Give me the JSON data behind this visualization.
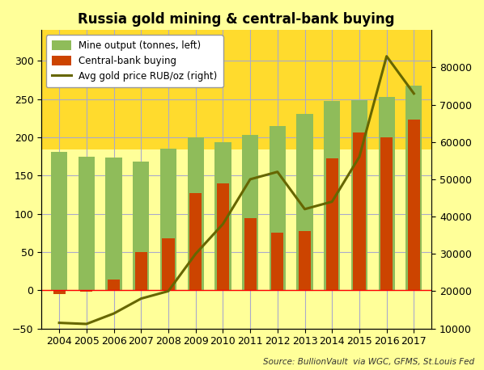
{
  "title": "Russia gold mining & central-bank buying",
  "years": [
    2004,
    2005,
    2006,
    2007,
    2008,
    2009,
    2010,
    2011,
    2012,
    2013,
    2014,
    2015,
    2016,
    2017
  ],
  "mine_output": [
    181,
    175,
    173,
    168,
    185,
    200,
    193,
    203,
    215,
    230,
    247,
    248,
    253,
    267
  ],
  "cb_buying": [
    -5,
    -2,
    14,
    50,
    68,
    127,
    140,
    94,
    75,
    77,
    172,
    206,
    200,
    223
  ],
  "gold_price_rub": [
    11500,
    11200,
    14000,
    18000,
    20000,
    30000,
    38000,
    50000,
    52000,
    42000,
    44000,
    56000,
    83000,
    73000
  ],
  "mine_color": "#8FBC5A",
  "cb_color": "#CC4400",
  "price_color": "#666600",
  "bg_color_top": "#FFCC00",
  "bg_color_bottom": "#FFFF99",
  "grid_color": "#AAAACC",
  "left_ylim": [
    -50,
    340
  ],
  "right_ylim": [
    10000,
    90000
  ],
  "left_yticks": [
    -50,
    0,
    50,
    100,
    150,
    200,
    250,
    300
  ],
  "right_yticks": [
    10000,
    20000,
    30000,
    40000,
    50000,
    60000,
    70000,
    80000
  ],
  "legend_labels": [
    "Mine output (tonnes, left)",
    "Central-bank buying",
    "Avg gold price RUB/oz (right)"
  ],
  "source_text": "Source: BullionVault  via WGC, GFMS, St.Louis Fed",
  "title_fontsize": 12,
  "bar_width": 0.6
}
